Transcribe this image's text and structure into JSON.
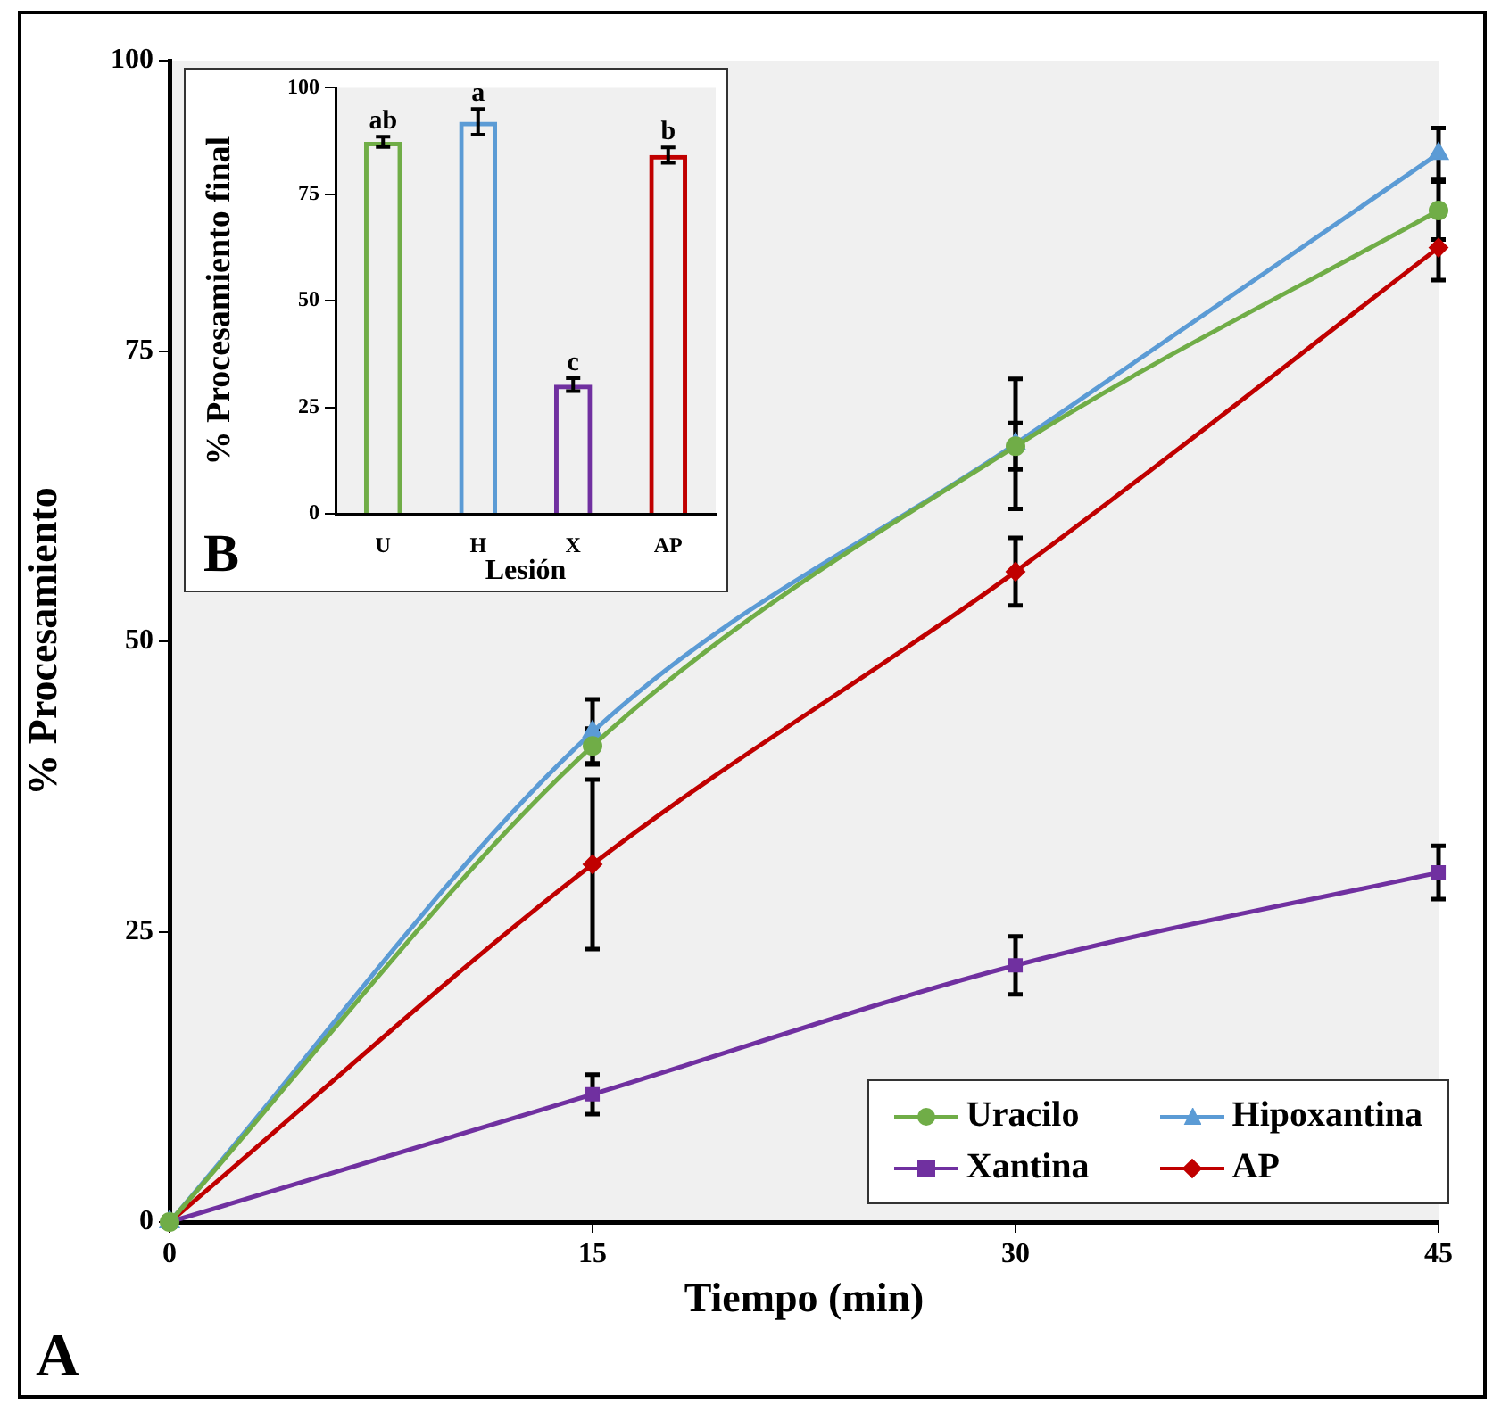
{
  "chart_data": [
    {
      "type": "line",
      "xlabel": "Tiempo (min)",
      "ylabel": "% Procesamiento",
      "x": [
        0,
        15,
        30,
        45
      ],
      "xlim": [
        0,
        45
      ],
      "xticks": [
        0,
        15,
        30,
        45
      ],
      "ylim": [
        0,
        100
      ],
      "yticks": [
        0,
        25,
        50,
        75,
        100
      ],
      "grid": false,
      "legend": "bottom right",
      "annotations": [
        "A"
      ],
      "series": [
        {
          "name": "Uracilo",
          "color": "#70ad47",
          "marker": "circle",
          "values": [
            0,
            41,
            66.8,
            87.1
          ],
          "errors": [
            null,
            1.5,
            2,
            2.5
          ]
        },
        {
          "name": "Hipoxantina",
          "color": "#5b9bd5",
          "marker": "triangle",
          "values": [
            0,
            42.2,
            67,
            92
          ],
          "errors": [
            null,
            2.8,
            5.6,
            2.2
          ]
        },
        {
          "name": "Xantina",
          "color": "#7030a0",
          "marker": "square",
          "values": [
            0,
            11,
            22.1,
            30.1
          ],
          "errors": [
            null,
            1.7,
            2.5,
            2.3
          ]
        },
        {
          "name": "AP",
          "color": "#c00000",
          "marker": "diamond",
          "values": [
            0,
            30.8,
            56,
            83.9
          ],
          "errors": [
            null,
            7.3,
            2.9,
            2.8
          ]
        }
      ]
    },
    {
      "type": "bar",
      "xlabel": "Lesión",
      "ylabel": "% Procesamiento final",
      "categories": [
        "U",
        "H",
        "X",
        "AP"
      ],
      "values": [
        87.3,
        92,
        30.3,
        84.2
      ],
      "errors": [
        1.2,
        3,
        1.5,
        1.8
      ],
      "colors": [
        "#70ad47",
        "#5b9bd5",
        "#7030a0",
        "#c00000"
      ],
      "ylim": [
        0,
        100
      ],
      "yticks": [
        0,
        25,
        50,
        75,
        100
      ],
      "grid": false,
      "annotations": [
        {
          "text": "ab",
          "x": "U",
          "y": 88.5
        },
        {
          "text": "a",
          "x": "H",
          "y": 95
        },
        {
          "text": "c",
          "x": "X",
          "y": 31.8
        },
        {
          "text": "b",
          "x": "AP",
          "y": 86
        },
        "B"
      ]
    }
  ]
}
